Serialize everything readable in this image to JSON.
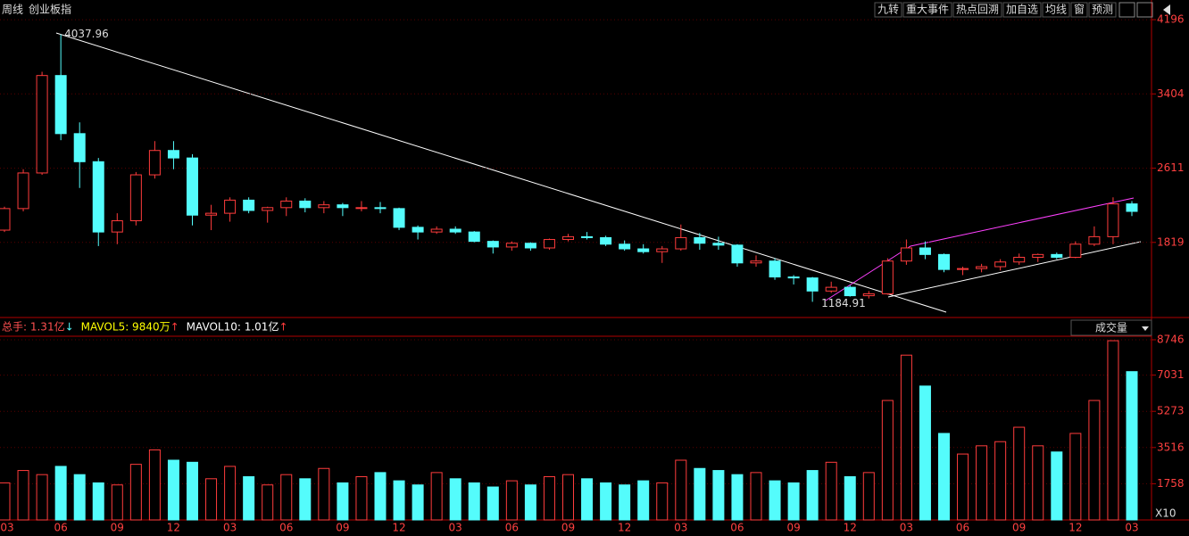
{
  "header": {
    "period": "周线",
    "name": "创业板指",
    "buttons": [
      "九转",
      "重大事件",
      "热点回溯",
      "加自选",
      "均线",
      "窗",
      "预测"
    ]
  },
  "chart_data": [
    {
      "type": "candlestick",
      "up_color": "#ff3c3c",
      "down_color": "#54fcfc",
      "categories": [
        "03",
        null,
        null,
        "06",
        null,
        null,
        "09",
        null,
        null,
        "12",
        null,
        null,
        "03",
        null,
        null,
        "06",
        null,
        null,
        "09",
        null,
        null,
        "12",
        null,
        null,
        "03",
        null,
        null,
        "06",
        null,
        null,
        "09",
        null,
        null,
        "12",
        null,
        null,
        "03",
        null,
        null,
        "06",
        null,
        null,
        "09",
        null,
        null,
        "12",
        null,
        null,
        "03",
        null,
        null,
        "06",
        null,
        null,
        "09",
        null,
        null,
        "12",
        null,
        null,
        "03"
      ],
      "open": [
        1950,
        2180,
        2560,
        3600,
        2980,
        2680,
        1930,
        2050,
        2540,
        2800,
        2720,
        2110,
        2130,
        2270,
        2160,
        2190,
        2260,
        2190,
        2220,
        2190,
        2190,
        2180,
        1980,
        1930,
        1960,
        1930,
        1830,
        1770,
        1810,
        1760,
        1850,
        1880,
        1870,
        1800,
        1750,
        1720,
        1750,
        1870,
        1810,
        1790,
        1600,
        1620,
        1450,
        1440,
        1300,
        1340,
        1250,
        1270,
        1620,
        1760,
        1690,
        1530,
        1540,
        1560,
        1610,
        1660,
        1690,
        1660,
        1800,
        1880,
        2230
      ],
      "high": [
        2200,
        2600,
        3640,
        4037.96,
        3100,
        2720,
        2130,
        2570,
        2900,
        2900,
        2760,
        2220,
        2300,
        2300,
        2200,
        2300,
        2290,
        2260,
        2240,
        2260,
        2250,
        2190,
        2000,
        1990,
        1990,
        1940,
        1840,
        1830,
        1820,
        1860,
        1910,
        1930,
        1890,
        1840,
        1800,
        1780,
        2010,
        1920,
        1880,
        1800,
        1680,
        1650,
        1470,
        1450,
        1400,
        1360,
        1300,
        1650,
        1850,
        1830,
        1700,
        1560,
        1590,
        1640,
        1700,
        1700,
        1710,
        1830,
        1990,
        2300,
        2260
      ],
      "low": [
        1930,
        2150,
        2540,
        2910,
        2400,
        1780,
        1800,
        2000,
        2500,
        2600,
        2000,
        1950,
        2040,
        2130,
        2030,
        2100,
        2140,
        2130,
        2100,
        2150,
        2130,
        1950,
        1850,
        1910,
        1910,
        1820,
        1700,
        1730,
        1730,
        1740,
        1830,
        1850,
        1780,
        1730,
        1700,
        1600,
        1730,
        1740,
        1740,
        1560,
        1560,
        1420,
        1370,
        1184.91,
        1280,
        1240,
        1220,
        1260,
        1580,
        1640,
        1500,
        1470,
        1500,
        1520,
        1580,
        1610,
        1640,
        1650,
        1780,
        1800,
        2100
      ],
      "close": [
        2180,
        2560,
        3600,
        2980,
        2680,
        1930,
        2050,
        2540,
        2800,
        2720,
        2110,
        2130,
        2270,
        2160,
        2190,
        2260,
        2190,
        2220,
        2190,
        2190,
        2180,
        1980,
        1930,
        1960,
        1930,
        1830,
        1770,
        1810,
        1760,
        1850,
        1880,
        1870,
        1800,
        1750,
        1720,
        1750,
        1870,
        1810,
        1790,
        1600,
        1620,
        1450,
        1440,
        1300,
        1340,
        1250,
        1270,
        1620,
        1760,
        1690,
        1530,
        1540,
        1560,
        1610,
        1660,
        1690,
        1660,
        1800,
        1880,
        2230,
        2150
      ],
      "ylim": [
        1027,
        4406
      ],
      "yticks": [
        1819,
        2611,
        3404,
        4196
      ],
      "grid": true
    },
    {
      "type": "volume",
      "title": "成交量",
      "unit_label": "X10",
      "legend": [
        {
          "label": "总手: 1.31亿",
          "arrow": "↓",
          "color": "#ff5050",
          "arrow_color": "#54fcfc"
        },
        {
          "label": "MAVOL5: 9840万",
          "arrow": "↑",
          "color": "#ffff00",
          "arrow_color": "#ff3c3c"
        },
        {
          "label": "MAVOL10: 1.01亿",
          "arrow": "↑",
          "color": "#ffffff",
          "arrow_color": "#ff3c3c"
        }
      ],
      "values": [
        1800,
        2400,
        2200,
        2600,
        2200,
        1800,
        1700,
        2700,
        3400,
        2900,
        2800,
        2000,
        2600,
        2100,
        1700,
        2200,
        2000,
        2500,
        1800,
        2100,
        2300,
        1900,
        1700,
        2300,
        2000,
        1800,
        1600,
        1900,
        1700,
        2100,
        2200,
        2000,
        1800,
        1700,
        1900,
        1800,
        2900,
        2500,
        2400,
        2200,
        2300,
        1900,
        1800,
        2400,
        2800,
        2100,
        2300,
        5800,
        8000,
        6500,
        4200,
        3200,
        3600,
        3800,
        4500,
        3600,
        3300,
        4200,
        5800,
        8700,
        7200
      ],
      "ylim": [
        0,
        8918
      ],
      "yticks": [
        1758,
        3516,
        5273,
        7031,
        8746
      ],
      "grid": true
    }
  ]
}
